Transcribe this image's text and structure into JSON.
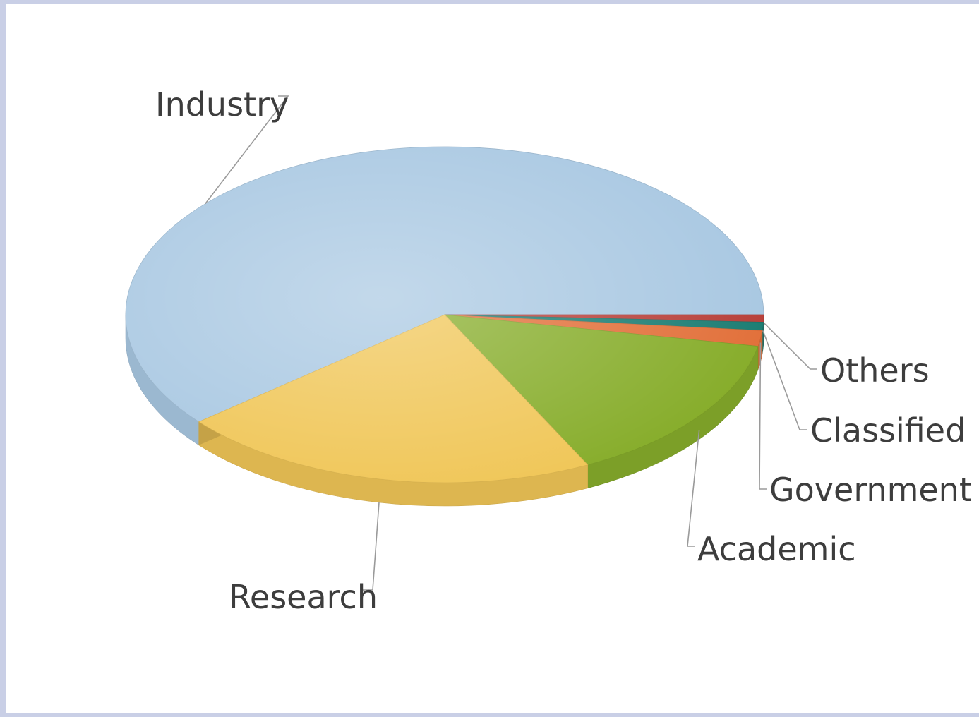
{
  "chart_data": {
    "type": "pie",
    "title": "",
    "categories": [
      "Industry",
      "Research",
      "Academic",
      "Government",
      "Classified",
      "Others"
    ],
    "values": [
      61.0,
      21.4,
      14.6,
      1.5,
      0.8,
      0.7
    ],
    "unit": "%",
    "colors": [
      "#a9c8e2",
      "#f0c657",
      "#87ad2b",
      "#e2703a",
      "#1c7d73",
      "#b8403a"
    ],
    "style": "3d",
    "legend": "none"
  }
}
